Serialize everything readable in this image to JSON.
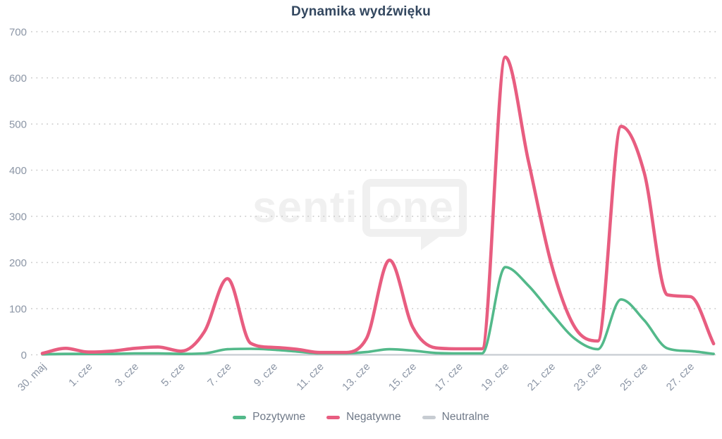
{
  "chart_data": {
    "type": "line",
    "title": "Dynamika wydźwięku",
    "xlabel": "",
    "ylabel": "",
    "ylim": [
      0,
      700
    ],
    "y_ticks": [
      0,
      100,
      200,
      300,
      400,
      500,
      600,
      700
    ],
    "grid": "horizontal-dotted",
    "legend_position": "bottom-center",
    "x_tick_step": 2,
    "categories": [
      "30. maj",
      "31. maj",
      "1. cze",
      "2. cze",
      "3. cze",
      "4. cze",
      "5. cze",
      "6. cze",
      "7. cze",
      "8. cze",
      "9. cze",
      "10. cze",
      "11. cze",
      "12. cze",
      "13. cze",
      "14. cze",
      "15. cze",
      "16. cze",
      "17. cze",
      "18. cze",
      "19. cze",
      "20. cze",
      "21. cze",
      "22. cze",
      "23. cze",
      "24. cze",
      "25. cze",
      "26. cze",
      "27. cze",
      "28. cze"
    ],
    "series": [
      {
        "name": "Pozytywne",
        "color": "#53b98a",
        "values": [
          1,
          2,
          2,
          2,
          3,
          3,
          2,
          3,
          12,
          13,
          11,
          7,
          3,
          3,
          6,
          12,
          9,
          4,
          3,
          3,
          190,
          150,
          90,
          35,
          12,
          120,
          75,
          14,
          8,
          2
        ]
      },
      {
        "name": "Negatywne",
        "color": "#e85d80",
        "values": [
          3,
          14,
          6,
          8,
          14,
          17,
          8,
          50,
          165,
          25,
          16,
          12,
          5,
          5,
          35,
          205,
          60,
          15,
          13,
          13,
          645,
          420,
          195,
          60,
          30,
          495,
          395,
          130,
          126,
          24
        ]
      },
      {
        "name": "Neutralne",
        "color": "#c7ccd2",
        "values": [
          0,
          0,
          0,
          0,
          0,
          0,
          0,
          0,
          0,
          0,
          0,
          0,
          0,
          0,
          0,
          0,
          0,
          0,
          0,
          0,
          0,
          0,
          0,
          0,
          0,
          0,
          0,
          0,
          0,
          0
        ]
      }
    ],
    "watermark": {
      "text_left": "senti",
      "text_bubble": "one"
    }
  }
}
